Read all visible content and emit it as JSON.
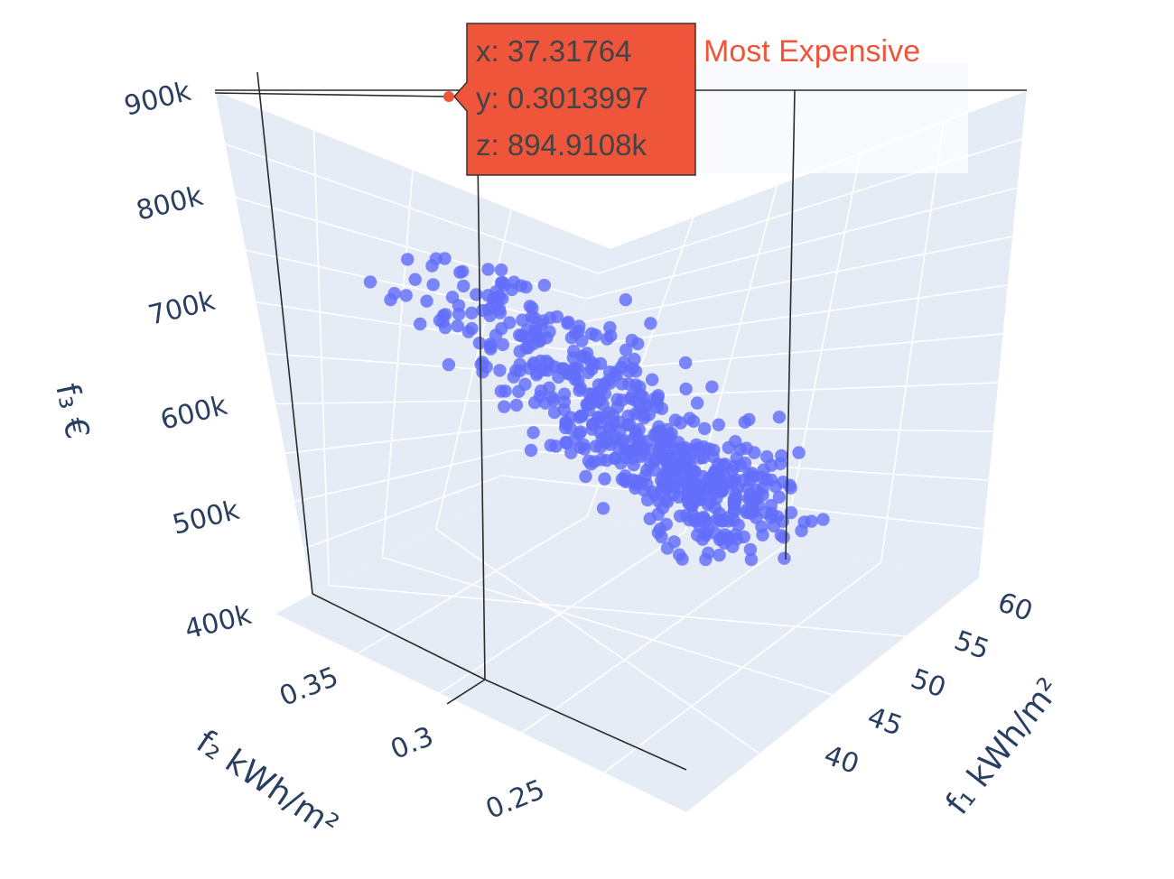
{
  "chart_data": {
    "type": "scatter",
    "dimensions": 3,
    "axes": {
      "x": {
        "label": "f₁ kWh/m²",
        "ticks": [
          40,
          45,
          50,
          55,
          60
        ],
        "range": [
          36,
          62
        ]
      },
      "y": {
        "label": "f₂ kWh/m²",
        "ticks": [
          0.25,
          0.3,
          0.35
        ],
        "range": [
          0.23,
          0.37
        ]
      },
      "z": {
        "label": "f₃ €",
        "ticks": [
          400000,
          500000,
          600000,
          700000,
          800000,
          900000
        ],
        "tick_labels": [
          "400k",
          "500k",
          "600k",
          "700k",
          "800k",
          "900k"
        ],
        "range": [
          400000,
          900000
        ]
      }
    },
    "series": [
      {
        "color": "#636efa",
        "point_count": 600,
        "distribution": "Pareto front: cost decreases from ~850k at low f1 to ~510k at high f1; f2 between 0.25 and 0.35"
      },
      {
        "name": "Most Expensive",
        "color": "#ef553b",
        "points": [
          {
            "x": 37.31764,
            "y": 0.3013997,
            "z": 894910.8
          }
        ]
      }
    ],
    "hover": {
      "x_text": "x: 37.31764",
      "y_text": "y: 0.3013997",
      "z_text": "z: 894.9108k"
    },
    "legend": {
      "position": "top-right",
      "entries": [
        "Most Expensive"
      ]
    },
    "grid": true,
    "colors": {
      "scene_bg": "#e5ecf6",
      "grid": "#ffffff",
      "axis_text": "#2a3f5f",
      "points": "#636efa",
      "highlight": "#ef553b"
    }
  }
}
